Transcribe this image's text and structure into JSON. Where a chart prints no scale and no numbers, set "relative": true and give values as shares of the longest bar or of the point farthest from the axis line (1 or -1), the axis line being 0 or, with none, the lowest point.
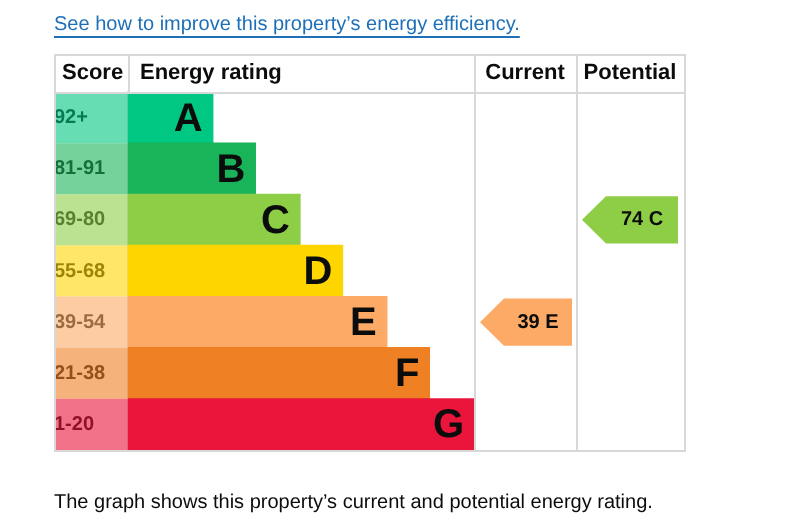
{
  "chart_data": {
    "type": "bar",
    "orientation": "horizontal",
    "relative": true,
    "title": "See how to improve this property’s energy efficiency.",
    "ylabel": "Score",
    "xlabel": "Energy rating",
    "categories": [
      "92+",
      "81-91",
      "69-80",
      "55-68",
      "39-54",
      "21-38",
      "1-20"
    ],
    "values": [
      0.245,
      0.368,
      0.497,
      0.62,
      0.748,
      0.871,
      1
    ],
    "colors": [
      "#00c781",
      "#19b459",
      "#8dce46",
      "#ffd500",
      "#fcaa65",
      "#ef8023",
      "#e9153b"
    ],
    "annotations": [
      "Current",
      "Potential",
      "39 E",
      "74 C",
      "The graph shows this property’s current and potential energy rating.",
      {
        "text": "A",
        "x": 0.245,
        "y": "92+"
      },
      {
        "text": "B",
        "x": 0.368,
        "y": "81-91"
      },
      {
        "text": "C",
        "x": 0.497,
        "y": "69-80"
      },
      {
        "text": "D",
        "x": 0.62,
        "y": "55-68"
      },
      {
        "text": "E",
        "x": 0.748,
        "y": "39-54"
      },
      {
        "text": "F",
        "x": 0.871,
        "y": "21-38"
      },
      {
        "text": "G",
        "x": 1,
        "y": "1-20"
      }
    ],
    "grid": false,
    "legend": false
  }
}
